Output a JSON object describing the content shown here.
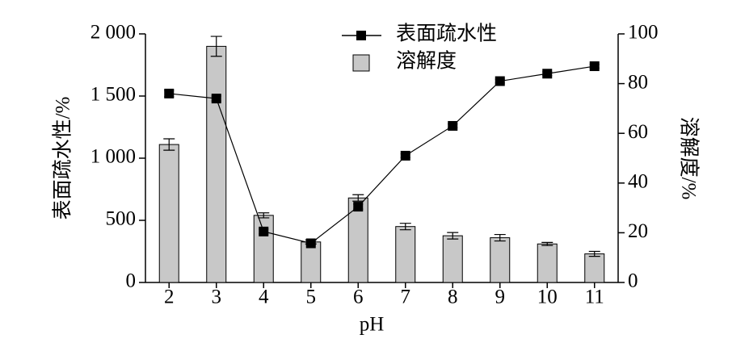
{
  "chart_data": {
    "type": "bar",
    "categories": [
      "2",
      "3",
      "4",
      "5",
      "6",
      "7",
      "8",
      "9",
      "10",
      "11"
    ],
    "xlabel": "pH",
    "ylabel": "表面疏水性/%",
    "y2label": "溶解度/%",
    "ylim": [
      0,
      2000
    ],
    "yticks": [
      0,
      500,
      {
        "value": 1000,
        "label": "1 000"
      },
      {
        "value": 1500,
        "label": "1 500"
      },
      {
        "value": 2000,
        "label": "2 000"
      }
    ],
    "y2lim": [
      0,
      100
    ],
    "y2ticks": [
      0,
      20,
      40,
      60,
      80,
      100
    ],
    "series": [
      {
        "name": "表面疏水性",
        "type": "line",
        "color": "#000000",
        "values": [
          1520,
          1480,
          410,
          315,
          610,
          1020,
          1260,
          1620,
          1680,
          1740
        ],
        "errors": [
          25,
          20,
          20,
          15,
          20,
          15,
          15,
          15,
          15,
          15
        ]
      },
      {
        "name": "溶解度",
        "type": "bar",
        "axis": "y2",
        "color": "#c8c8c8",
        "values": [
          55.5,
          95,
          27,
          16.3,
          34,
          22.5,
          18.8,
          18,
          15.5,
          11.5
        ],
        "errors": [
          2.3,
          4,
          1,
          0.8,
          1.3,
          1.3,
          1.3,
          1.3,
          0.6,
          1
        ]
      }
    ]
  }
}
